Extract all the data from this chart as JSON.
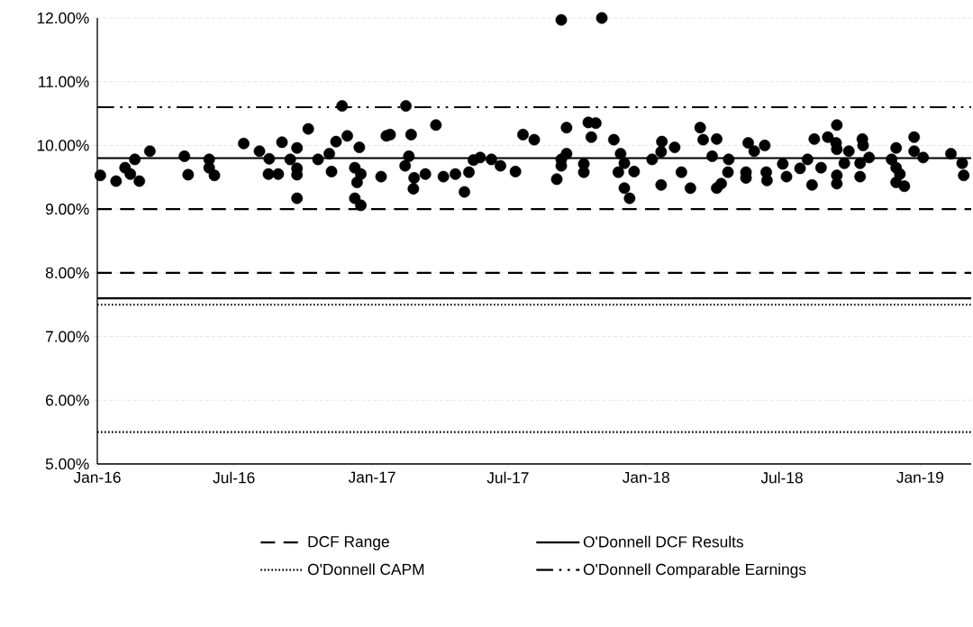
{
  "chart_data": {
    "type": "scatter",
    "xlim": [
      "2016-01-01",
      "2019-03-10"
    ],
    "ylim": [
      5,
      12
    ],
    "xticks": [
      {
        "value": "2016-01-01",
        "label": "Jan-16"
      },
      {
        "value": "2016-07-01",
        "label": "Jul-16"
      },
      {
        "value": "2017-01-01",
        "label": "Jan-17"
      },
      {
        "value": "2017-07-01",
        "label": "Jul-17"
      },
      {
        "value": "2018-01-01",
        "label": "Jan-18"
      },
      {
        "value": "2018-07-01",
        "label": "Jul-18"
      },
      {
        "value": "2019-01-01",
        "label": "Jan-19"
      }
    ],
    "yticks": [
      {
        "value": 5,
        "label": "5.00%"
      },
      {
        "value": 6,
        "label": "6.00%"
      },
      {
        "value": 7,
        "label": "7.00%"
      },
      {
        "value": 8,
        "label": "8.00%"
      },
      {
        "value": 9,
        "label": "9.00%"
      },
      {
        "value": 10,
        "label": "10.00%"
      },
      {
        "value": 11,
        "label": "11.00%"
      },
      {
        "value": 12,
        "label": "12.00%"
      }
    ],
    "grid": "y",
    "legend": "bottom",
    "series": [
      {
        "type": "line",
        "name": "DCF Range",
        "color": "#000000",
        "line_style": "dashed",
        "marker": "none",
        "x": [
          "2016-01-01",
          "2019-03-10"
        ],
        "values": [
          9.0,
          9.0
        ]
      },
      {
        "type": "line",
        "color": "#000000",
        "line_style": "dashed",
        "marker": "none",
        "x": [
          "2016-01-01",
          "2019-03-10"
        ],
        "values": [
          8.0,
          8.0
        ]
      },
      {
        "type": "line",
        "name": "O'Donnell DCF Results",
        "color": "#000000",
        "line_style": "solid",
        "marker": "none",
        "x": [
          "2016-01-01",
          "2019-03-10"
        ],
        "values": [
          9.8,
          9.8
        ]
      },
      {
        "type": "line",
        "color": "#000000",
        "line_style": "solid",
        "marker": "none",
        "x": [
          "2016-01-01",
          "2019-03-10"
        ],
        "values": [
          7.6,
          7.6
        ]
      },
      {
        "type": "line",
        "name": "O'Donnell CAPM",
        "color": "#000000",
        "line_style": "dotted",
        "marker": "none",
        "x": [
          "2016-01-01",
          "2019-03-10"
        ],
        "values": [
          7.5,
          7.5
        ]
      },
      {
        "type": "line",
        "color": "#000000",
        "line_style": "dotted",
        "marker": "none",
        "x": [
          "2016-01-01",
          "2019-03-10"
        ],
        "values": [
          5.5,
          5.5
        ]
      },
      {
        "type": "line",
        "name": "O'Donnell Comparable Earnings",
        "color": "#000000",
        "line_style": "dashdot",
        "marker": "none",
        "x": [
          "2016-01-01",
          "2019-03-10"
        ],
        "values": [
          10.6,
          10.6
        ]
      },
      {
        "color": "#000000",
        "marker": "circle",
        "x": [
          "2016-01-05",
          "2016-01-26",
          "2016-02-07",
          "2016-02-14",
          "2016-02-20",
          "2016-02-26",
          "2016-03-11",
          "2016-04-26",
          "2016-05-01",
          "2016-05-29",
          "2016-05-29",
          "2016-06-05",
          "2016-07-14",
          "2016-08-04",
          "2016-08-17",
          "2016-08-16",
          "2016-08-29",
          "2016-09-03",
          "2016-09-14",
          "2016-09-23",
          "2016-09-23",
          "2016-09-23",
          "2016-09-23",
          "2016-10-08",
          "2016-10-21",
          "2016-11-05",
          "2016-11-08",
          "2016-11-14",
          "2016-11-29",
          "2016-11-22",
          "2016-12-09",
          "2016-12-15",
          "2016-12-12",
          "2016-12-17",
          "2016-12-09",
          "2016-12-17",
          "2017-01-13",
          "2017-01-20",
          "2017-09-10",
          "2017-11-03",
          "2017-02-15",
          "2017-01-25",
          "2017-02-22",
          "2017-03-27",
          "2017-02-14",
          "2017-02-19",
          "2017-02-26",
          "2017-02-25",
          "2017-03-13",
          "2017-04-06",
          "2017-04-22",
          "2017-05-10",
          "2017-05-04",
          "2017-05-16",
          "2017-05-25",
          "2017-06-09",
          "2017-06-21",
          "2017-07-11",
          "2017-07-21",
          "2017-08-05",
          "2017-09-04",
          "2017-09-10",
          "2017-09-10",
          "2017-09-17",
          "2017-09-17",
          "2017-10-10",
          "2017-10-10",
          "2017-10-16",
          "2017-10-26",
          "2017-10-20",
          "2017-11-19",
          "2017-11-28",
          "2017-12-03",
          "2017-11-25",
          "2017-12-16",
          "2017-12-03",
          "2017-12-10",
          "2018-01-09",
          "2018-01-21",
          "2018-01-22",
          "2018-01-21",
          "2018-02-08",
          "2018-02-17",
          "2018-03-01",
          "2018-03-14",
          "2018-03-18",
          "2018-04-05",
          "2018-03-30",
          "2018-04-21",
          "2018-04-20",
          "2018-04-11",
          "2018-04-05",
          "2018-05-17",
          "2018-05-25",
          "2018-05-14",
          "2018-05-14",
          "2018-06-08",
          "2018-06-10",
          "2018-06-11",
          "2018-07-02",
          "2018-07-07",
          "2018-07-25",
          "2018-08-04",
          "2018-08-10",
          "2018-08-13",
          "2018-08-22",
          "2018-08-31",
          "2018-09-12",
          "2018-09-11",
          "2018-09-12",
          "2018-09-12",
          "2018-09-12",
          "2018-09-22",
          "2018-09-28",
          "2018-10-16",
          "2018-10-17",
          "2018-10-13",
          "2018-10-13",
          "2018-10-25",
          "2018-11-30",
          "2018-11-24",
          "2018-11-30",
          "2018-11-30",
          "2018-12-11",
          "2018-12-05",
          "2018-12-24",
          "2018-12-24",
          "2019-01-05",
          "2019-02-11",
          "2019-02-26",
          "2019-02-28"
        ],
        "values": [
          9.53,
          9.44,
          9.65,
          9.55,
          9.78,
          9.44,
          9.91,
          9.83,
          9.54,
          9.78,
          9.65,
          9.53,
          10.03,
          9.91,
          9.79,
          9.55,
          9.55,
          10.05,
          9.78,
          9.96,
          9.64,
          9.54,
          9.17,
          10.26,
          9.78,
          9.87,
          9.59,
          10.06,
          10.15,
          10.62,
          9.65,
          9.97,
          9.42,
          9.55,
          9.17,
          9.06,
          9.51,
          10.15,
          11.97,
          12.0,
          10.62,
          10.17,
          10.17,
          10.32,
          9.68,
          9.83,
          9.49,
          9.32,
          9.55,
          9.51,
          9.55,
          9.58,
          9.27,
          9.77,
          9.81,
          9.78,
          9.68,
          9.59,
          10.17,
          10.09,
          9.47,
          9.68,
          9.78,
          9.87,
          10.28,
          9.71,
          9.58,
          10.36,
          10.35,
          10.13,
          10.09,
          9.87,
          9.72,
          9.58,
          9.59,
          9.33,
          9.17,
          9.78,
          9.38,
          10.06,
          9.9,
          9.97,
          9.58,
          9.33,
          10.28,
          10.09,
          10.1,
          9.83,
          9.78,
          9.58,
          9.4,
          9.33,
          10.04,
          9.91,
          9.58,
          9.49,
          10.0,
          9.58,
          9.45,
          9.71,
          9.51,
          9.64,
          9.78,
          9.38,
          10.1,
          9.65,
          10.13,
          10.32,
          10.04,
          9.94,
          9.53,
          9.4,
          9.72,
          9.91,
          10.1,
          10.0,
          9.72,
          9.51,
          9.81,
          9.96,
          9.78,
          9.65,
          9.42,
          9.36,
          9.55,
          10.13,
          9.91,
          9.81,
          9.87,
          9.72,
          9.53
        ]
      }
    ]
  }
}
